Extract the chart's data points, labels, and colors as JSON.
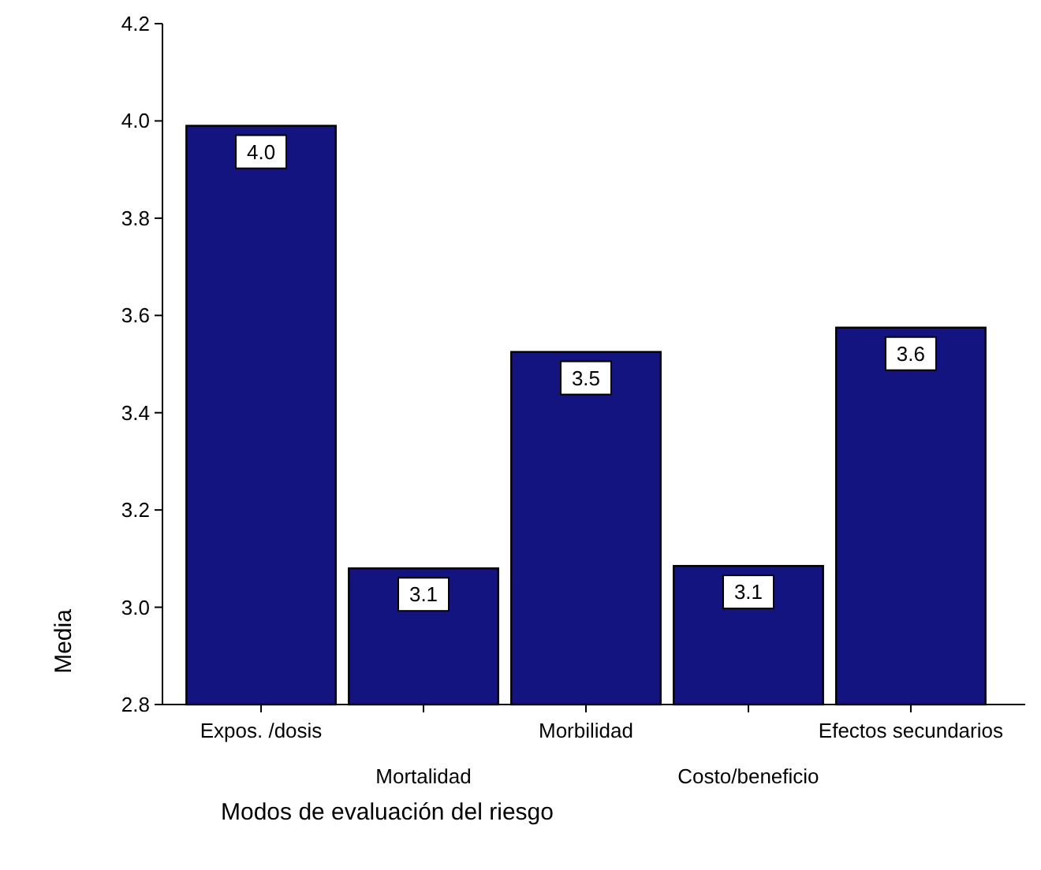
{
  "chart_data": {
    "type": "bar",
    "xlabel": "Modos de evaluación del riesgo",
    "ylabel": "Media",
    "categories": [
      "Expos. /dosis",
      "Mortalidad",
      "Morbilidad",
      "Costo/beneficio",
      "Efectos secundarios"
    ],
    "values": [
      3.99,
      3.08,
      3.525,
      3.085,
      3.575
    ],
    "value_labels": [
      "4.0",
      "3.1",
      "3.5",
      "3.1",
      "3.6"
    ],
    "color": "#141480",
    "ylim": [
      2.8,
      4.2
    ],
    "yticks": [
      2.8,
      {
        "value": 3,
        "label": "3.0"
      },
      3.2,
      3.4,
      3.6,
      3.8,
      {
        "value": 4,
        "label": "4.0"
      },
      4.2
    ],
    "grid": false
  }
}
